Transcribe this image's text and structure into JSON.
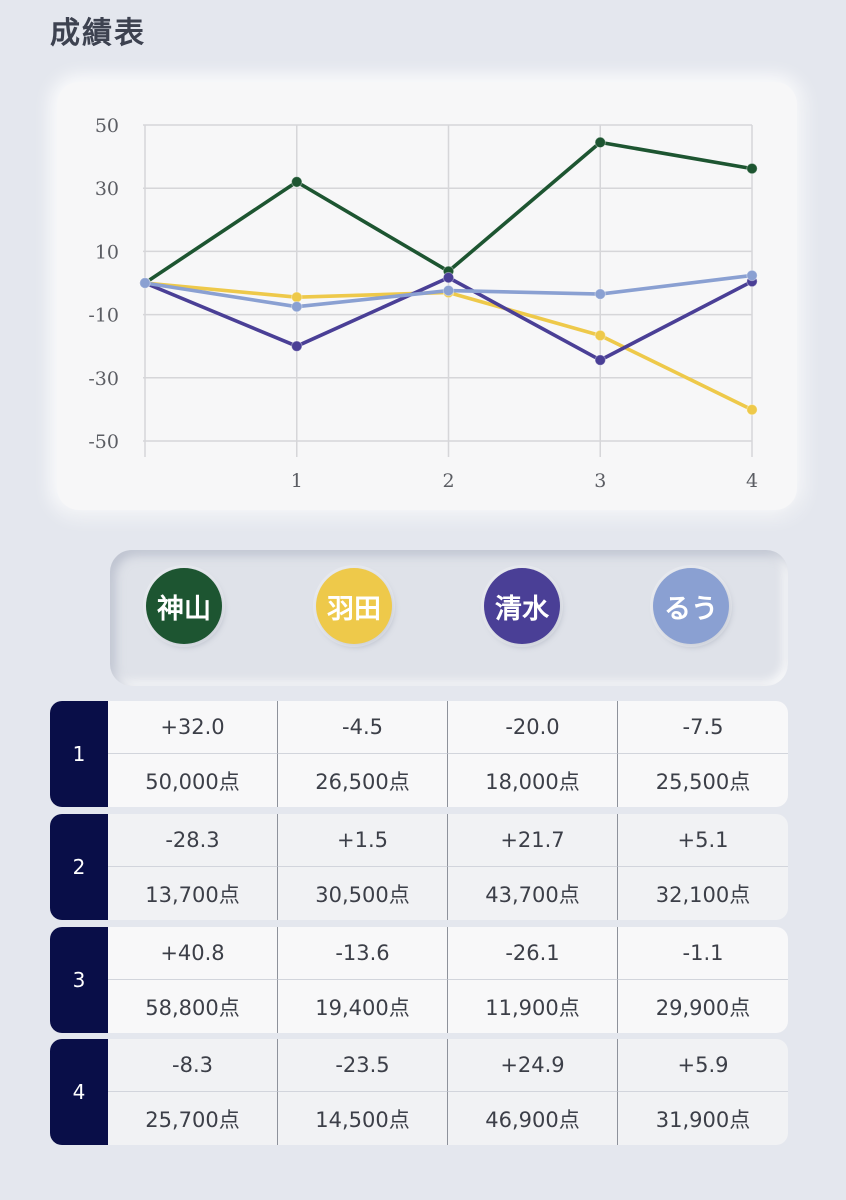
{
  "title": "成績表",
  "players": [
    {
      "name": "神山",
      "color": "#1d5531"
    },
    {
      "name": "羽田",
      "color": "#eec94a"
    },
    {
      "name": "清水",
      "color": "#4a3f96"
    },
    {
      "name": "るう",
      "color": "#8aa0d2"
    }
  ],
  "chart_data": {
    "type": "line",
    "x": [
      0,
      1,
      2,
      3,
      4
    ],
    "x_tick_labels": [
      "1",
      "2",
      "3",
      "4"
    ],
    "y_tick_labels": [
      "50",
      "30",
      "10",
      "-10",
      "-30",
      "-50"
    ],
    "ylim": [
      -50,
      50
    ],
    "series": [
      {
        "name": "神山",
        "color": "#1d5531",
        "values": [
          0,
          32.0,
          3.7,
          44.5,
          36.2
        ]
      },
      {
        "name": "羽田",
        "color": "#eec94a",
        "values": [
          0,
          -4.5,
          -3.0,
          -16.6,
          -40.1
        ]
      },
      {
        "name": "清水",
        "color": "#4a3f96",
        "values": [
          0,
          -20.0,
          1.7,
          -24.4,
          0.5
        ]
      },
      {
        "name": "るう",
        "color": "#8aa0d2",
        "values": [
          0,
          -7.5,
          -2.4,
          -3.5,
          2.4
        ]
      }
    ]
  },
  "rounds": [
    {
      "round": "1",
      "scores": [
        "+32.0",
        "-4.5",
        "-20.0",
        "-7.5"
      ],
      "points": [
        "50,000点",
        "26,500点",
        "18,000点",
        "25,500点"
      ]
    },
    {
      "round": "2",
      "scores": [
        "-28.3",
        "+1.5",
        "+21.7",
        "+5.1"
      ],
      "points": [
        "13,700点",
        "30,500点",
        "43,700点",
        "32,100点"
      ]
    },
    {
      "round": "3",
      "scores": [
        "+40.8",
        "-13.6",
        "-26.1",
        "-1.1"
      ],
      "points": [
        "58,800点",
        "19,400点",
        "11,900点",
        "29,900点"
      ]
    },
    {
      "round": "4",
      "scores": [
        "-8.3",
        "-23.5",
        "+24.9",
        "+5.9"
      ],
      "points": [
        "25,700点",
        "14,500点",
        "46,900点",
        "31,900点"
      ]
    }
  ]
}
